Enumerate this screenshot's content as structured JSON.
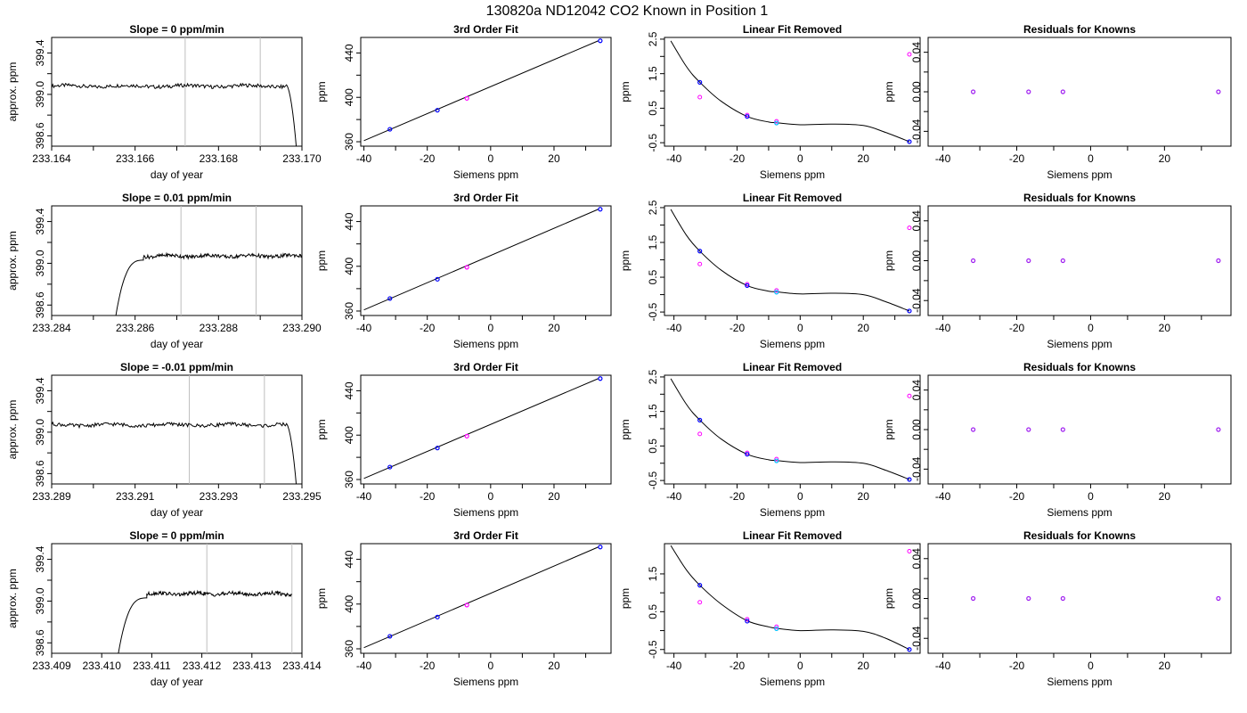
{
  "page_title": "130820a     ND12042   CO2 Known in Position  1",
  "colors": {
    "trace": "#000000",
    "vline": "#bebebe",
    "known_blue": "#0000ff",
    "known_magenta": "#ff00ff",
    "known_cyan": "#00bfff",
    "known_purple": "#a020f0"
  },
  "chart_data": [
    {
      "type": "line",
      "title": "Slope =  0  ppm/min",
      "xlabel": "day of year",
      "ylabel": "approx. ppm",
      "xlim": [
        233.164,
        233.17
      ],
      "ylim": [
        398.5,
        399.55
      ],
      "x_ticks": [
        "233.164",
        "233.166",
        "233.168",
        "233.170"
      ],
      "y_ticks": [
        "398.6",
        "399.0",
        "399.4"
      ],
      "vlines": [
        233.1672,
        233.169
      ],
      "trace": {
        "start": 233.164,
        "end": 233.1698,
        "level": 399.08,
        "rise_end": null,
        "drop_start": 233.1696,
        "drop_end": 233.1699
      }
    },
    {
      "type": "scatter",
      "title": "3rd Order Fit",
      "xlabel": "Siemens ppm",
      "ylabel": "ppm",
      "xlim": [
        -41,
        38
      ],
      "ylim": [
        356,
        454
      ],
      "x_ticks": [
        "-40",
        "-20",
        "0",
        "20"
      ],
      "y_ticks": [
        "360",
        "400",
        "440"
      ],
      "fit_line": [
        [
          -40,
          361
        ],
        [
          34,
          451
        ]
      ],
      "points": [
        {
          "x": -31.8,
          "y": 371.2
        },
        {
          "x": -16.8,
          "y": 388.4
        },
        {
          "x": -7.5,
          "y": 399.1
        },
        {
          "x": 34.6,
          "y": 451.0
        }
      ]
    },
    {
      "type": "scatter",
      "title": "Linear Fit Removed",
      "xlabel": "Siemens ppm",
      "ylabel": "ppm",
      "xlim": [
        -43,
        38
      ],
      "ylim": [
        -0.6,
        2.55
      ],
      "x_ticks": [
        "-40",
        "-20",
        "0",
        "20"
      ],
      "y_ticks": [
        "-0.5",
        "0.5",
        "1.5",
        "2.5"
      ],
      "curve_points": [
        [
          -41,
          2.45
        ],
        [
          -36,
          1.7
        ],
        [
          -31.8,
          1.25
        ],
        [
          -25,
          0.7
        ],
        [
          -16.8,
          0.26
        ],
        [
          -10,
          0.1
        ],
        [
          -7.5,
          0.08
        ],
        [
          0,
          0.02
        ],
        [
          10,
          0.04
        ],
        [
          20,
          0.0
        ],
        [
          27,
          -0.2
        ],
        [
          34.6,
          -0.47
        ]
      ],
      "points": [
        {
          "x": -31.8,
          "y": 1.25
        },
        {
          "x": -16.8,
          "y": 0.26
        },
        {
          "x": -7.5,
          "y": 0.07
        },
        {
          "x": 34.6,
          "y": -0.47
        }
      ],
      "points_alt": [
        {
          "x": -31.8,
          "y": 0.82
        },
        {
          "x": -16.8,
          "y": 0.3
        },
        {
          "x": -7.5,
          "y": 0.12
        },
        {
          "x": 34.6,
          "y": 2.06
        }
      ]
    },
    {
      "type": "scatter",
      "title": "Residuals for Knowns",
      "xlabel": "Siemens ppm",
      "ylabel": "ppm",
      "xlim": [
        -44,
        38
      ],
      "ylim": [
        -0.055,
        0.055
      ],
      "x_ticks": [
        "-40",
        "-20",
        "0",
        "20"
      ],
      "y_ticks": [
        "-0.04",
        "0.00",
        "0.04"
      ],
      "points": [
        {
          "x": -31.8,
          "y": 0
        },
        {
          "x": -16.8,
          "y": 0
        },
        {
          "x": -7.5,
          "y": 0
        },
        {
          "x": 34.6,
          "y": 0
        }
      ]
    },
    {
      "type": "line",
      "title": "Slope =  0.01  ppm/min",
      "xlabel": "day of year",
      "ylabel": "approx. ppm",
      "xlim": [
        233.284,
        233.29
      ],
      "ylim": [
        398.5,
        399.55
      ],
      "x_ticks": [
        "233.284",
        "233.286",
        "233.288",
        "233.290"
      ],
      "y_ticks": [
        "398.6",
        "399.0",
        "399.4"
      ],
      "vlines": [
        233.2871,
        233.2889
      ],
      "trace": {
        "start": 233.2855,
        "end": 233.29,
        "level": 399.07,
        "rise_end": 233.2862,
        "drop_start": null,
        "drop_end": null
      }
    },
    {
      "type": "scatter",
      "title": "3rd Order Fit",
      "xlabel": "Siemens ppm",
      "ylabel": "ppm",
      "xlim": [
        -41,
        38
      ],
      "ylim": [
        356,
        454
      ],
      "x_ticks": [
        "-40",
        "-20",
        "0",
        "20"
      ],
      "y_ticks": [
        "360",
        "400",
        "440"
      ],
      "fit_line": [
        [
          -40,
          361
        ],
        [
          34,
          451
        ]
      ],
      "points": [
        {
          "x": -31.8,
          "y": 371.2
        },
        {
          "x": -16.8,
          "y": 388.4
        },
        {
          "x": -7.5,
          "y": 399.1
        },
        {
          "x": 34.6,
          "y": 451.0
        }
      ]
    },
    {
      "type": "scatter",
      "title": "Linear Fit Removed",
      "xlabel": "Siemens ppm",
      "ylabel": "ppm",
      "xlim": [
        -43,
        38
      ],
      "ylim": [
        -0.6,
        2.55
      ],
      "x_ticks": [
        "-40",
        "-20",
        "0",
        "20"
      ],
      "y_ticks": [
        "-0.5",
        "0.5",
        "1.5",
        "2.5"
      ],
      "curve_points": [
        [
          -41,
          2.45
        ],
        [
          -36,
          1.7
        ],
        [
          -31.8,
          1.25
        ],
        [
          -25,
          0.7
        ],
        [
          -16.8,
          0.26
        ],
        [
          -10,
          0.1
        ],
        [
          -7.5,
          0.08
        ],
        [
          0,
          0.02
        ],
        [
          10,
          0.04
        ],
        [
          20,
          0.0
        ],
        [
          27,
          -0.2
        ],
        [
          34.6,
          -0.47
        ]
      ],
      "points": [
        {
          "x": -31.8,
          "y": 1.25
        },
        {
          "x": -16.8,
          "y": 0.26
        },
        {
          "x": -7.5,
          "y": 0.07
        },
        {
          "x": 34.6,
          "y": -0.47
        }
      ],
      "points_alt": [
        {
          "x": -31.8,
          "y": 0.88
        },
        {
          "x": -16.8,
          "y": 0.3
        },
        {
          "x": -7.5,
          "y": 0.12
        },
        {
          "x": 34.6,
          "y": 1.92
        }
      ]
    },
    {
      "type": "scatter",
      "title": "Residuals for Knowns",
      "xlabel": "Siemens ppm",
      "ylabel": "ppm",
      "xlim": [
        -44,
        38
      ],
      "ylim": [
        -0.055,
        0.055
      ],
      "x_ticks": [
        "-40",
        "-20",
        "0",
        "20"
      ],
      "y_ticks": [
        "-0.04",
        "0.00",
        "0.04"
      ],
      "points": [
        {
          "x": -31.8,
          "y": 0
        },
        {
          "x": -16.8,
          "y": 0
        },
        {
          "x": -7.5,
          "y": 0
        },
        {
          "x": 34.6,
          "y": 0
        }
      ]
    },
    {
      "type": "line",
      "title": "Slope =  -0.01  ppm/min",
      "xlabel": "day of year",
      "ylabel": "approx. ppm",
      "xlim": [
        233.289,
        233.295
      ],
      "ylim": [
        398.5,
        399.55
      ],
      "x_ticks": [
        "233.289",
        "233.291",
        "233.293",
        "233.295"
      ],
      "y_ticks": [
        "398.6",
        "399.0",
        "399.4"
      ],
      "vlines": [
        233.2923,
        233.2941
      ],
      "trace": {
        "start": 233.289,
        "end": 233.2948,
        "level": 399.07,
        "rise_end": null,
        "drop_start": 233.2946,
        "drop_end": 233.2949
      }
    },
    {
      "type": "scatter",
      "title": "3rd Order Fit",
      "xlabel": "Siemens ppm",
      "ylabel": "ppm",
      "xlim": [
        -41,
        38
      ],
      "ylim": [
        356,
        454
      ],
      "x_ticks": [
        "-40",
        "-20",
        "0",
        "20"
      ],
      "y_ticks": [
        "360",
        "400",
        "440"
      ],
      "fit_line": [
        [
          -40,
          361
        ],
        [
          34,
          451
        ]
      ],
      "points": [
        {
          "x": -31.8,
          "y": 371.2
        },
        {
          "x": -16.8,
          "y": 388.4
        },
        {
          "x": -7.5,
          "y": 399.1
        },
        {
          "x": 34.6,
          "y": 451.0
        }
      ]
    },
    {
      "type": "scatter",
      "title": "Linear Fit Removed",
      "xlabel": "Siemens ppm",
      "ylabel": "ppm",
      "xlim": [
        -43,
        38
      ],
      "ylim": [
        -0.6,
        2.55
      ],
      "x_ticks": [
        "-40",
        "-20",
        "0",
        "20"
      ],
      "y_ticks": [
        "-0.5",
        "0.5",
        "1.5",
        "2.5"
      ],
      "curve_points": [
        [
          -41,
          2.45
        ],
        [
          -36,
          1.7
        ],
        [
          -31.8,
          1.25
        ],
        [
          -25,
          0.7
        ],
        [
          -16.8,
          0.26
        ],
        [
          -10,
          0.1
        ],
        [
          -7.5,
          0.08
        ],
        [
          0,
          0.02
        ],
        [
          10,
          0.04
        ],
        [
          20,
          0.0
        ],
        [
          27,
          -0.2
        ],
        [
          34.6,
          -0.47
        ]
      ],
      "points": [
        {
          "x": -31.8,
          "y": 1.25
        },
        {
          "x": -16.8,
          "y": 0.26
        },
        {
          "x": -7.5,
          "y": 0.07
        },
        {
          "x": 34.6,
          "y": -0.47
        }
      ],
      "points_alt": [
        {
          "x": -31.8,
          "y": 0.85
        },
        {
          "x": -16.8,
          "y": 0.3
        },
        {
          "x": -7.5,
          "y": 0.12
        },
        {
          "x": 34.6,
          "y": 1.95
        }
      ]
    },
    {
      "type": "scatter",
      "title": "Residuals for Knowns",
      "xlabel": "Siemens ppm",
      "ylabel": "ppm",
      "xlim": [
        -44,
        38
      ],
      "ylim": [
        -0.055,
        0.055
      ],
      "x_ticks": [
        "-40",
        "-20",
        "0",
        "20"
      ],
      "y_ticks": [
        "-0.04",
        "0.00",
        "0.04"
      ],
      "points": [
        {
          "x": -31.8,
          "y": 0
        },
        {
          "x": -16.8,
          "y": 0
        },
        {
          "x": -7.5,
          "y": 0
        },
        {
          "x": 34.6,
          "y": 0
        }
      ]
    },
    {
      "type": "line",
      "title": "Slope =  0  ppm/min",
      "xlabel": "day of year",
      "ylabel": "approx. ppm",
      "xlim": [
        233.409,
        233.414
      ],
      "ylim": [
        398.5,
        399.55
      ],
      "x_ticks": [
        "233.409",
        "233.410",
        "233.411",
        "233.412",
        "233.413",
        "233.414"
      ],
      "y_ticks": [
        "398.6",
        "399.0",
        "399.4"
      ],
      "vlines": [
        233.4121,
        233.4138
      ],
      "trace": {
        "start": 233.4103,
        "end": 233.4138,
        "level": 399.07,
        "rise_end": 233.4109,
        "drop_start": null,
        "drop_end": null
      }
    },
    {
      "type": "scatter",
      "title": "3rd Order Fit",
      "xlabel": "Siemens ppm",
      "ylabel": "ppm",
      "xlim": [
        -41,
        38
      ],
      "ylim": [
        356,
        454
      ],
      "x_ticks": [
        "-40",
        "-20",
        "0",
        "20"
      ],
      "y_ticks": [
        "360",
        "400",
        "440"
      ],
      "fit_line": [
        [
          -40,
          361
        ],
        [
          34,
          451
        ]
      ],
      "points": [
        {
          "x": -31.8,
          "y": 371.2
        },
        {
          "x": -16.8,
          "y": 388.4
        },
        {
          "x": -7.5,
          "y": 399.1
        },
        {
          "x": 34.6,
          "y": 451.0
        }
      ]
    },
    {
      "type": "scatter",
      "title": "Linear Fit Removed",
      "xlabel": "Siemens ppm",
      "ylabel": "ppm",
      "xlim": [
        -43,
        38
      ],
      "ylim": [
        -0.6,
        2.3
      ],
      "x_ticks": [
        "-40",
        "-20",
        "0",
        "20"
      ],
      "y_ticks": [
        "-0.5",
        "0.5",
        "1.5"
      ],
      "curve_points": [
        [
          -41,
          2.25
        ],
        [
          -36,
          1.6
        ],
        [
          -31.8,
          1.2
        ],
        [
          -25,
          0.7
        ],
        [
          -16.8,
          0.26
        ],
        [
          -10,
          0.1
        ],
        [
          -7.5,
          0.06
        ],
        [
          0,
          0.0
        ],
        [
          10,
          0.02
        ],
        [
          20,
          -0.02
        ],
        [
          27,
          -0.2
        ],
        [
          34.6,
          -0.5
        ]
      ],
      "points": [
        {
          "x": -31.8,
          "y": 1.2
        },
        {
          "x": -16.8,
          "y": 0.25
        },
        {
          "x": -7.5,
          "y": 0.05
        },
        {
          "x": 34.6,
          "y": -0.5
        }
      ],
      "points_alt": [
        {
          "x": -31.8,
          "y": 0.75
        },
        {
          "x": -16.8,
          "y": 0.3
        },
        {
          "x": -7.5,
          "y": 0.1
        },
        {
          "x": 34.6,
          "y": 2.1
        }
      ]
    },
    {
      "type": "scatter",
      "title": "Residuals for Knowns",
      "xlabel": "Siemens ppm",
      "ylabel": "ppm",
      "xlim": [
        -44,
        38
      ],
      "ylim": [
        -0.055,
        0.055
      ],
      "x_ticks": [
        "-40",
        "-20",
        "0",
        "20"
      ],
      "y_ticks": [
        "-0.04",
        "0.00",
        "0.04"
      ],
      "points": [
        {
          "x": -31.8,
          "y": 0
        },
        {
          "x": -16.8,
          "y": 0
        },
        {
          "x": -7.5,
          "y": 0
        },
        {
          "x": 34.6,
          "y": 0
        }
      ]
    }
  ]
}
